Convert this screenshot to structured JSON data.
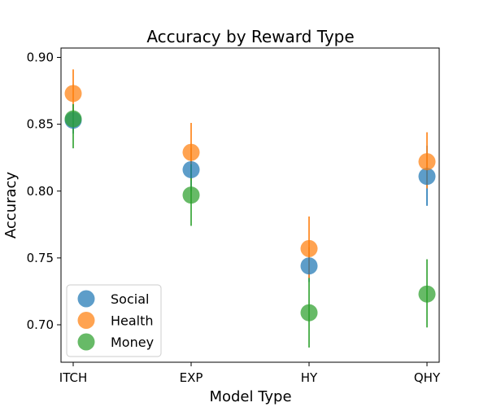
{
  "chart_data": {
    "type": "scatter",
    "title": "Accuracy by Reward Type",
    "xlabel": "Model Type",
    "ylabel": "Accuracy",
    "categories": [
      "ITCH",
      "EXP",
      "HY",
      "QHY"
    ],
    "ylim": [
      0.672,
      0.907
    ],
    "yticks": [
      0.7,
      0.75,
      0.8,
      0.85,
      0.9
    ],
    "ytick_labels": [
      "0.70",
      "0.75",
      "0.80",
      "0.85",
      "0.90"
    ],
    "grid": false,
    "legend_position": "lower-left",
    "series": [
      {
        "name": "Social",
        "color": "#1f77b4",
        "values": [
          0.853,
          0.816,
          0.744,
          0.811
        ],
        "err_low": [
          0.843,
          0.8,
          0.732,
          0.789
        ],
        "err_high": [
          0.865,
          0.832,
          0.758,
          0.834
        ]
      },
      {
        "name": "Health",
        "color": "#ff7f0e",
        "values": [
          0.873,
          0.829,
          0.757,
          0.822
        ],
        "err_low": [
          0.857,
          0.808,
          0.735,
          0.802
        ],
        "err_high": [
          0.891,
          0.851,
          0.781,
          0.844
        ]
      },
      {
        "name": "Money",
        "color": "#2ca02c",
        "values": [
          0.854,
          0.797,
          0.709,
          0.723
        ],
        "err_low": [
          0.832,
          0.774,
          0.683,
          0.698
        ],
        "err_high": [
          0.865,
          0.82,
          0.735,
          0.749
        ]
      }
    ]
  }
}
